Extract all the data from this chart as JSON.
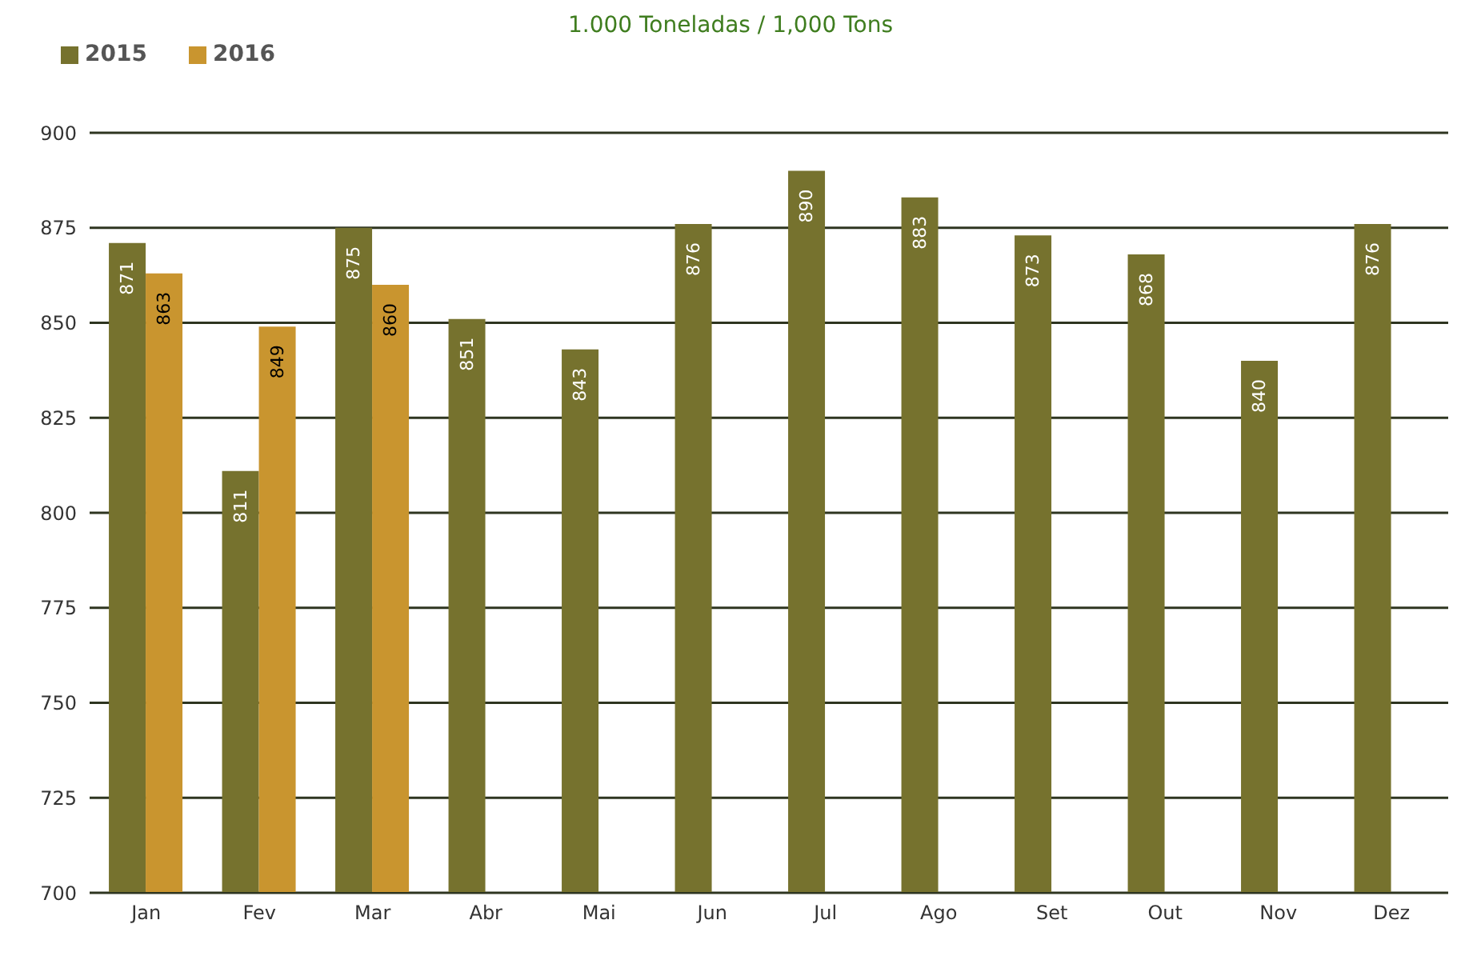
{
  "chart_data": {
    "type": "bar",
    "title": "1.000 Toneladas / 1,000 Tons",
    "categories": [
      "Jan",
      "Fev",
      "Mar",
      "Abr",
      "Mai",
      "Jun",
      "Jul",
      "Ago",
      "Set",
      "Out",
      "Nov",
      "Dez"
    ],
    "series": [
      {
        "name": "2015",
        "color": "#76722e",
        "values": [
          871,
          811,
          875,
          851,
          843,
          876,
          890,
          883,
          873,
          868,
          840,
          876
        ]
      },
      {
        "name": "2016",
        "color": "#c9952f",
        "values": [
          863,
          849,
          860,
          null,
          null,
          null,
          null,
          null,
          null,
          null,
          null,
          null
        ]
      }
    ],
    "ylim": [
      700,
      900
    ],
    "yticks": [
      700,
      725,
      750,
      775,
      800,
      825,
      850,
      875,
      900
    ],
    "grid": "y",
    "legend": "top left",
    "data_labels": true
  }
}
